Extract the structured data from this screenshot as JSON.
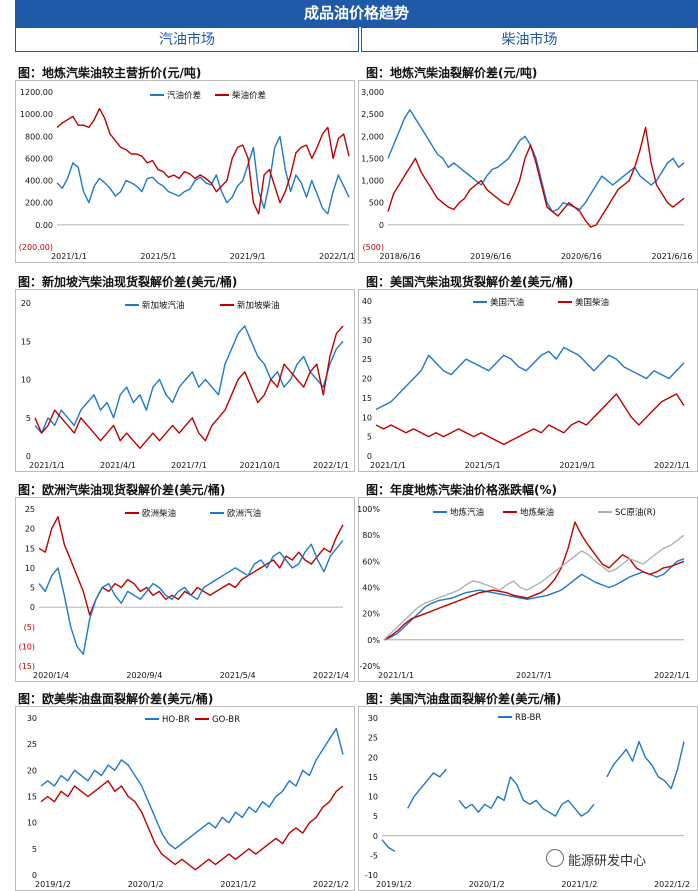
{
  "header": {
    "title": "成品油价格趋势",
    "left_section": "汽油市场",
    "right_section": "柴油市场"
  },
  "watermark": "能源研发中心",
  "colors": {
    "blue": "#1f78c8",
    "red": "#c00000",
    "gray": "#b0b0b0",
    "negative_label": "#c00000"
  },
  "panels": [
    {
      "title": "图：地炼汽柴油较主营折价(元/吨)"
    },
    {
      "title": "图：地炼汽柴油裂解价差(元/吨)"
    },
    {
      "title": "图：新加坡汽柴油现货裂解价差(美元/桶)"
    },
    {
      "title": "图：美国汽柴油现货裂解价差(美元/桶)"
    },
    {
      "title": "图：欧洲汽柴油现货裂解价差(美元/桶)"
    },
    {
      "title": "图：年度地炼汽柴油价格涨跌幅(%)"
    },
    {
      "title": "图：欧美柴油盘面裂解价差(美元/桶)"
    },
    {
      "title": "图：美国汽油盘面裂解价差(美元/桶)"
    }
  ],
  "chart_data": [
    {
      "type": "line",
      "yticks": [
        "1200.00",
        "1000.00",
        "800.00",
        "600.00",
        "400.00",
        "200.00",
        "0.00",
        "(200.00)"
      ],
      "ylim": [
        -200,
        1200
      ],
      "x_ticks": [
        "2021/1/1",
        "2021/5/1",
        "2021/9/1",
        "2022/1/1"
      ],
      "series": [
        {
          "name": "汽油价差",
          "color": "blue",
          "values": [
            380,
            330,
            420,
            560,
            520,
            300,
            200,
            350,
            420,
            380,
            330,
            260,
            300,
            400,
            380,
            350,
            300,
            420,
            430,
            380,
            350,
            300,
            280,
            260,
            300,
            320,
            400,
            430,
            380,
            360,
            450,
            300,
            200,
            250,
            350,
            400,
            550,
            700,
            300,
            150,
            380,
            700,
            800,
            500,
            300,
            450,
            380,
            250,
            400,
            280,
            150,
            100,
            300,
            450,
            350,
            250
          ]
        },
        {
          "name": "柴油价差",
          "color": "red",
          "values": [
            880,
            920,
            950,
            980,
            900,
            900,
            880,
            950,
            1050,
            960,
            820,
            760,
            700,
            680,
            640,
            640,
            620,
            560,
            580,
            500,
            480,
            430,
            450,
            420,
            480,
            460,
            420,
            450,
            420,
            380,
            300,
            350,
            400,
            600,
            700,
            720,
            600,
            200,
            100,
            450,
            500,
            350,
            200,
            300,
            450,
            650,
            700,
            720,
            600,
            700,
            820,
            880,
            600,
            780,
            820,
            620
          ]
        }
      ]
    },
    {
      "type": "line",
      "yticks": [
        "3,000",
        "2,500",
        "2,000",
        "1,500",
        "1,000",
        "500",
        "0",
        "(500)"
      ],
      "ylim": [
        -500,
        3000
      ],
      "x_ticks": [
        "2018/6/16",
        "2019/6/16",
        "2020/6/16",
        "2021/6/16"
      ],
      "series": [
        {
          "name": "地炼汽油裂解",
          "color": "blue",
          "values": [
            1500,
            1800,
            2100,
            2400,
            2600,
            2400,
            2200,
            2000,
            1800,
            1600,
            1500,
            1300,
            1400,
            1300,
            1200,
            1100,
            1000,
            900,
            1100,
            1250,
            1300,
            1400,
            1500,
            1700,
            1900,
            2000,
            1800,
            1500,
            1000,
            500,
            300,
            350,
            500,
            450,
            400,
            350,
            500,
            700,
            900,
            1100,
            1000,
            900,
            1000,
            1100,
            1200,
            1300,
            1100,
            1000,
            900,
            1000,
            1200,
            1400,
            1500,
            1300,
            1400
          ]
        },
        {
          "name": "地炼柴油裂解",
          "color": "red",
          "values": [
            300,
            700,
            900,
            1100,
            1300,
            1500,
            1200,
            1000,
            800,
            600,
            500,
            400,
            350,
            500,
            600,
            800,
            900,
            1000,
            800,
            700,
            600,
            500,
            450,
            700,
            1000,
            1500,
            1800,
            1400,
            900,
            400,
            300,
            200,
            350,
            500,
            400,
            300,
            100,
            -50,
            0,
            200,
            400,
            600,
            800,
            900,
            1000,
            1300,
            1700,
            2200,
            1400,
            900,
            700,
            500,
            400,
            500,
            600
          ]
        }
      ]
    },
    {
      "type": "line",
      "yticks": [
        "20",
        "15",
        "10",
        "5",
        "0"
      ],
      "ylim": [
        0,
        20
      ],
      "x_ticks": [
        "2021/1/1",
        "2021/4/1",
        "2021/7/1",
        "2021/10/1",
        "2022/1/1"
      ],
      "series": [
        {
          "name": "新加坡汽油",
          "color": "blue",
          "values": [
            4,
            3,
            5,
            4,
            6,
            5,
            4,
            6,
            7,
            8,
            6,
            7,
            5,
            8,
            9,
            7,
            8,
            6,
            9,
            10,
            8,
            7,
            9,
            10,
            11,
            9,
            10,
            9,
            8,
            12,
            14,
            16,
            17,
            15,
            13,
            12,
            10,
            11,
            9,
            10,
            12,
            13,
            11,
            10,
            9,
            12,
            14,
            15
          ]
        },
        {
          "name": "新加坡柴油",
          "color": "red",
          "values": [
            5,
            3,
            4,
            6,
            5,
            4,
            3,
            5,
            4,
            3,
            2,
            3,
            4,
            2,
            3,
            2,
            1,
            2,
            3,
            2,
            3,
            4,
            3,
            4,
            5,
            3,
            2,
            4,
            5,
            6,
            8,
            10,
            11,
            9,
            7,
            8,
            10,
            9,
            12,
            11,
            10,
            9,
            11,
            12,
            8,
            13,
            16,
            17
          ]
        }
      ]
    },
    {
      "type": "line",
      "yticks": [
        "40",
        "35",
        "30",
        "25",
        "20",
        "15",
        "10",
        "5",
        "0"
      ],
      "ylim": [
        0,
        40
      ],
      "x_ticks": [
        "2021/1/1",
        "2021/5/1",
        "2021/9/1",
        "2022/1/1"
      ],
      "series": [
        {
          "name": "美国汽油",
          "color": "blue",
          "values": [
            12,
            13,
            14,
            16,
            18,
            20,
            22,
            26,
            24,
            22,
            21,
            23,
            25,
            24,
            23,
            22,
            24,
            26,
            25,
            23,
            22,
            24,
            26,
            27,
            25,
            28,
            27,
            26,
            24,
            22,
            24,
            26,
            25,
            23,
            22,
            21,
            20,
            22,
            21,
            20,
            22,
            24
          ]
        },
        {
          "name": "美国柴油",
          "color": "red",
          "values": [
            8,
            7,
            8,
            7,
            6,
            7,
            6,
            5,
            6,
            5,
            6,
            7,
            6,
            5,
            6,
            5,
            4,
            3,
            4,
            5,
            6,
            7,
            6,
            8,
            7,
            6,
            8,
            9,
            8,
            10,
            12,
            14,
            16,
            13,
            10,
            8,
            10,
            12,
            14,
            15,
            16,
            13
          ]
        }
      ]
    },
    {
      "type": "line",
      "yticks": [
        "25",
        "20",
        "15",
        "10",
        "5",
        "0",
        "(5)",
        "(10)",
        "(15)"
      ],
      "ylim": [
        -15,
        25
      ],
      "x_ticks": [
        "2020/1/4",
        "2020/9/4",
        "2021/5/4",
        "2022/1/4"
      ],
      "series": [
        {
          "name": "欧洲柴油",
          "color": "red",
          "values": [
            15,
            14,
            20,
            23,
            16,
            12,
            8,
            4,
            -2,
            2,
            5,
            4,
            6,
            5,
            7,
            6,
            4,
            5,
            3,
            4,
            2,
            3,
            2,
            4,
            3,
            5,
            4,
            3,
            4,
            5,
            6,
            5,
            7,
            8,
            9,
            10,
            11,
            12,
            10,
            13,
            12,
            14,
            12,
            11,
            13,
            15,
            14,
            18,
            21
          ]
        },
        {
          "name": "欧洲汽油",
          "color": "blue",
          "values": [
            6,
            4,
            8,
            10,
            3,
            -5,
            -10,
            -12,
            -3,
            2,
            5,
            6,
            3,
            1,
            4,
            3,
            2,
            4,
            6,
            5,
            3,
            2,
            4,
            5,
            3,
            2,
            5,
            6,
            7,
            8,
            9,
            10,
            9,
            8,
            11,
            12,
            10,
            13,
            14,
            12,
            10,
            11,
            14,
            16,
            12,
            9,
            13,
            15,
            17
          ]
        }
      ]
    },
    {
      "type": "line",
      "yticks": [
        "100%",
        "80%",
        "60%",
        "40%",
        "20%",
        "0%",
        "-20%"
      ],
      "ylim": [
        -20,
        100
      ],
      "x_ticks": [
        "2021/1/1",
        "2021/7/1",
        "2022/1/1"
      ],
      "series": [
        {
          "name": "地炼汽油",
          "color": "blue",
          "values": [
            0,
            2,
            5,
            10,
            15,
            20,
            25,
            28,
            30,
            31,
            32,
            34,
            36,
            37,
            38,
            37,
            36,
            35,
            34,
            33,
            32,
            31,
            32,
            33,
            34,
            36,
            38,
            42,
            46,
            50,
            47,
            44,
            42,
            40,
            42,
            45,
            48,
            50,
            52,
            50,
            48,
            50,
            55,
            60,
            62
          ]
        },
        {
          "name": "地炼柴油",
          "color": "red",
          "values": [
            0,
            3,
            7,
            12,
            16,
            18,
            20,
            22,
            24,
            26,
            28,
            30,
            32,
            34,
            36,
            37,
            38,
            37,
            36,
            34,
            33,
            32,
            34,
            36,
            40,
            46,
            55,
            70,
            90,
            80,
            72,
            65,
            58,
            55,
            60,
            65,
            62,
            55,
            52,
            50,
            52,
            55,
            56,
            58,
            60
          ]
        },
        {
          "name": "SC原油(R)",
          "color": "gray",
          "values": [
            0,
            5,
            10,
            15,
            20,
            25,
            28,
            30,
            32,
            34,
            36,
            38,
            42,
            45,
            44,
            42,
            40,
            38,
            42,
            45,
            40,
            38,
            41,
            44,
            48,
            52,
            56,
            60,
            64,
            68,
            65,
            60,
            56,
            52,
            54,
            58,
            62,
            60,
            58,
            62,
            66,
            70,
            72,
            76,
            80
          ]
        }
      ]
    },
    {
      "type": "line",
      "yticks": [
        "30",
        "25",
        "20",
        "15",
        "10",
        "5",
        "0"
      ],
      "ylim": [
        0,
        30
      ],
      "x_ticks": [
        "2019/1/2",
        "2020/1/2",
        "2021/1/2",
        "2022/1/2"
      ],
      "series": [
        {
          "name": "HO-BR",
          "color": "blue",
          "values": [
            17,
            18,
            17,
            19,
            18,
            20,
            19,
            18,
            20,
            19,
            21,
            20,
            22,
            21,
            19,
            17,
            14,
            11,
            8,
            6,
            5,
            6,
            7,
            8,
            9,
            10,
            9,
            11,
            10,
            12,
            11,
            13,
            12,
            14,
            13,
            15,
            16,
            18,
            17,
            20,
            19,
            22,
            24,
            26,
            28,
            23
          ]
        },
        {
          "name": "GO-BR",
          "color": "red",
          "values": [
            14,
            15,
            14,
            16,
            15,
            17,
            16,
            15,
            16,
            17,
            18,
            16,
            17,
            15,
            14,
            12,
            9,
            6,
            4,
            3,
            2,
            3,
            2,
            1,
            2,
            3,
            2,
            3,
            4,
            3,
            4,
            5,
            4,
            5,
            6,
            7,
            6,
            8,
            9,
            8,
            10,
            11,
            13,
            14,
            16,
            17
          ]
        }
      ]
    },
    {
      "type": "line",
      "yticks": [
        "30",
        "25",
        "20",
        "15",
        "10",
        "5",
        "0",
        "-5",
        "-10"
      ],
      "ylim": [
        -10,
        30
      ],
      "x_ticks": [
        "2019/1/2",
        "2020/1/2",
        "2021/1/2",
        "2022/1/2"
      ],
      "series": [
        {
          "name": "RB-BR",
          "color": "blue",
          "values": [
            -1,
            -3,
            -4,
            null,
            7,
            10,
            12,
            14,
            16,
            15,
            17,
            null,
            9,
            7,
            8,
            6,
            8,
            7,
            10,
            9,
            15,
            13,
            9,
            8,
            9,
            7,
            6,
            5,
            8,
            9,
            7,
            5,
            6,
            8,
            null,
            15,
            18,
            20,
            22,
            19,
            24,
            20,
            18,
            15,
            14,
            12,
            17,
            24
          ]
        }
      ]
    }
  ]
}
